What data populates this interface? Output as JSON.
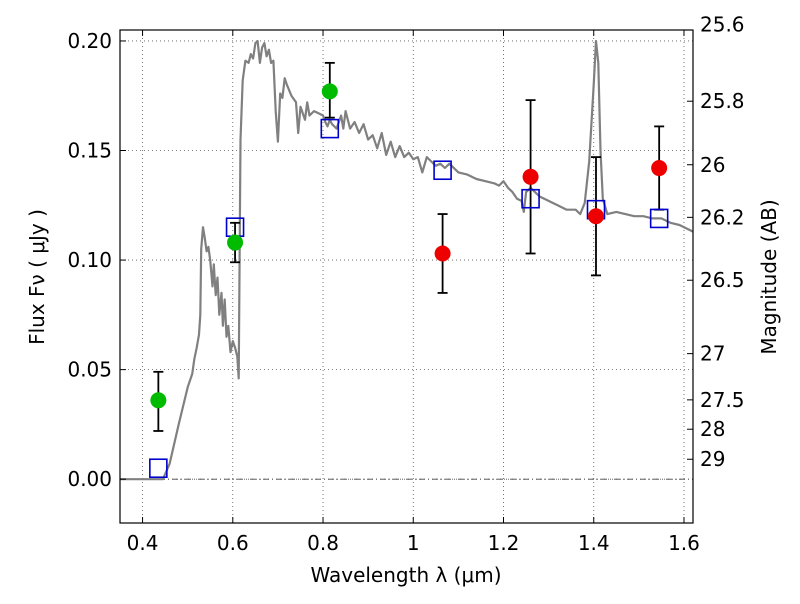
{
  "chart_data": {
    "type": "scatter",
    "xlabel": "Wavelength  λ (μm)",
    "ylabel_left": "Flux  Fν  ( μJy )",
    "ylabel_right": "Magnitude (AB)",
    "xlim": [
      0.35,
      1.62
    ],
    "ylim": [
      -0.02,
      0.205
    ],
    "x_ticks": [
      0.4,
      0.6,
      0.8,
      1.0,
      1.2,
      1.4,
      1.6
    ],
    "x_tick_labels": [
      "0.4",
      "0.6",
      "0.8",
      "1",
      "1.2",
      "1.4",
      "1.6"
    ],
    "y_ticks": [
      0.0,
      0.05,
      0.1,
      0.15,
      0.2
    ],
    "y_tick_labels": [
      "0.00",
      "0.05",
      "0.10",
      "0.15",
      "0.20"
    ],
    "right_ticks": [
      {
        "label": "25.6",
        "flux": 0.2075
      },
      {
        "label": "25.8",
        "flux": 0.1725
      },
      {
        "label": "26",
        "flux": 0.1435
      },
      {
        "label": "26.2",
        "flux": 0.1195
      },
      {
        "label": "26.5",
        "flux": 0.0908
      },
      {
        "label": "27",
        "flux": 0.0573
      },
      {
        "label": "27.5",
        "flux": 0.0362
      },
      {
        "label": "28",
        "flux": 0.0228
      },
      {
        "label": "29",
        "flux": 0.0091
      }
    ],
    "grid": true,
    "zero_line": true,
    "series": [
      {
        "kind": "model",
        "color": "#808080",
        "points": [
          [
            0.35,
            0.0
          ],
          [
            0.43,
            0.0
          ],
          [
            0.445,
            0.0
          ],
          [
            0.46,
            0.007
          ],
          [
            0.48,
            0.025
          ],
          [
            0.5,
            0.042
          ],
          [
            0.51,
            0.048
          ],
          [
            0.515,
            0.055
          ],
          [
            0.52,
            0.06
          ],
          [
            0.525,
            0.066
          ],
          [
            0.528,
            0.075
          ],
          [
            0.53,
            0.105
          ],
          [
            0.534,
            0.115
          ],
          [
            0.538,
            0.11
          ],
          [
            0.542,
            0.104
          ],
          [
            0.546,
            0.106
          ],
          [
            0.55,
            0.1
          ],
          [
            0.555,
            0.088
          ],
          [
            0.558,
            0.098
          ],
          [
            0.562,
            0.084
          ],
          [
            0.566,
            0.092
          ],
          [
            0.57,
            0.075
          ],
          [
            0.575,
            0.085
          ],
          [
            0.578,
            0.07
          ],
          [
            0.582,
            0.082
          ],
          [
            0.586,
            0.065
          ],
          [
            0.59,
            0.07
          ],
          [
            0.595,
            0.058
          ],
          [
            0.6,
            0.063
          ],
          [
            0.605,
            0.06
          ],
          [
            0.61,
            0.056
          ],
          [
            0.613,
            0.046
          ],
          [
            0.617,
            0.155
          ],
          [
            0.622,
            0.182
          ],
          [
            0.628,
            0.191
          ],
          [
            0.635,
            0.19
          ],
          [
            0.64,
            0.194
          ],
          [
            0.645,
            0.192
          ],
          [
            0.65,
            0.199
          ],
          [
            0.655,
            0.2
          ],
          [
            0.66,
            0.19
          ],
          [
            0.665,
            0.197
          ],
          [
            0.67,
            0.199
          ],
          [
            0.675,
            0.193
          ],
          [
            0.68,
            0.196
          ],
          [
            0.685,
            0.19
          ],
          [
            0.69,
            0.191
          ],
          [
            0.695,
            0.168
          ],
          [
            0.7,
            0.154
          ],
          [
            0.705,
            0.176
          ],
          [
            0.71,
            0.174
          ],
          [
            0.715,
            0.183
          ],
          [
            0.72,
            0.18
          ],
          [
            0.73,
            0.175
          ],
          [
            0.74,
            0.172
          ],
          [
            0.745,
            0.158
          ],
          [
            0.75,
            0.17
          ],
          [
            0.76,
            0.164
          ],
          [
            0.765,
            0.172
          ],
          [
            0.77,
            0.166
          ],
          [
            0.78,
            0.168
          ],
          [
            0.79,
            0.167
          ],
          [
            0.8,
            0.166
          ],
          [
            0.805,
            0.163
          ],
          [
            0.81,
            0.161
          ],
          [
            0.815,
            0.164
          ],
          [
            0.82,
            0.162
          ],
          [
            0.83,
            0.16
          ],
          [
            0.84,
            0.166
          ],
          [
            0.845,
            0.16
          ],
          [
            0.85,
            0.168
          ],
          [
            0.86,
            0.16
          ],
          [
            0.87,
            0.163
          ],
          [
            0.88,
            0.158
          ],
          [
            0.89,
            0.162
          ],
          [
            0.9,
            0.155
          ],
          [
            0.91,
            0.157
          ],
          [
            0.92,
            0.151
          ],
          [
            0.93,
            0.158
          ],
          [
            0.94,
            0.148
          ],
          [
            0.95,
            0.154
          ],
          [
            0.96,
            0.147
          ],
          [
            0.97,
            0.152
          ],
          [
            0.98,
            0.147
          ],
          [
            0.99,
            0.149
          ],
          [
            1.0,
            0.146
          ],
          [
            1.01,
            0.147
          ],
          [
            1.02,
            0.14
          ],
          [
            1.03,
            0.147
          ],
          [
            1.04,
            0.145
          ],
          [
            1.05,
            0.143
          ],
          [
            1.06,
            0.144
          ],
          [
            1.07,
            0.142
          ],
          [
            1.08,
            0.144
          ],
          [
            1.1,
            0.14
          ],
          [
            1.12,
            0.139
          ],
          [
            1.14,
            0.137
          ],
          [
            1.16,
            0.136
          ],
          [
            1.18,
            0.135
          ],
          [
            1.19,
            0.134
          ],
          [
            1.2,
            0.136
          ],
          [
            1.21,
            0.133
          ],
          [
            1.22,
            0.131
          ],
          [
            1.23,
            0.128
          ],
          [
            1.24,
            0.127
          ],
          [
            1.245,
            0.122
          ],
          [
            1.25,
            0.131
          ],
          [
            1.26,
            0.133
          ],
          [
            1.28,
            0.129
          ],
          [
            1.3,
            0.127
          ],
          [
            1.32,
            0.125
          ],
          [
            1.34,
            0.123
          ],
          [
            1.36,
            0.123
          ],
          [
            1.37,
            0.121
          ],
          [
            1.38,
            0.126
          ],
          [
            1.39,
            0.145
          ],
          [
            1.4,
            0.18
          ],
          [
            1.405,
            0.2
          ],
          [
            1.41,
            0.19
          ],
          [
            1.415,
            0.15
          ],
          [
            1.42,
            0.128
          ],
          [
            1.43,
            0.121
          ],
          [
            1.45,
            0.122
          ],
          [
            1.47,
            0.121
          ],
          [
            1.49,
            0.12
          ],
          [
            1.51,
            0.12
          ],
          [
            1.53,
            0.119
          ],
          [
            1.55,
            0.119
          ],
          [
            1.57,
            0.117
          ],
          [
            1.59,
            0.116
          ],
          [
            1.62,
            0.113
          ]
        ]
      },
      {
        "kind": "model_bandpass",
        "color": "#0000cc",
        "points": [
          [
            0.435,
            0.005
          ],
          [
            0.605,
            0.115
          ],
          [
            0.815,
            0.16
          ],
          [
            1.065,
            0.141
          ],
          [
            1.26,
            0.128
          ],
          [
            1.405,
            0.123
          ],
          [
            1.545,
            0.119
          ]
        ]
      },
      {
        "kind": "observed_detection",
        "color": "#00bb00",
        "points": [
          {
            "x": 0.435,
            "y": 0.036,
            "lo": 0.022,
            "hi": 0.049
          },
          {
            "x": 0.605,
            "y": 0.108,
            "lo": 0.099,
            "hi": 0.117
          },
          {
            "x": 0.815,
            "y": 0.177,
            "lo": 0.165,
            "hi": 0.19
          }
        ]
      },
      {
        "kind": "observed_other",
        "color": "#ee0000",
        "points": [
          {
            "x": 1.065,
            "y": 0.103,
            "lo": 0.085,
            "hi": 0.121
          },
          {
            "x": 1.26,
            "y": 0.138,
            "lo": 0.103,
            "hi": 0.173
          },
          {
            "x": 1.405,
            "y": 0.12,
            "lo": 0.093,
            "hi": 0.147
          },
          {
            "x": 1.545,
            "y": 0.142,
            "lo": 0.123,
            "hi": 0.161
          }
        ]
      }
    ]
  }
}
